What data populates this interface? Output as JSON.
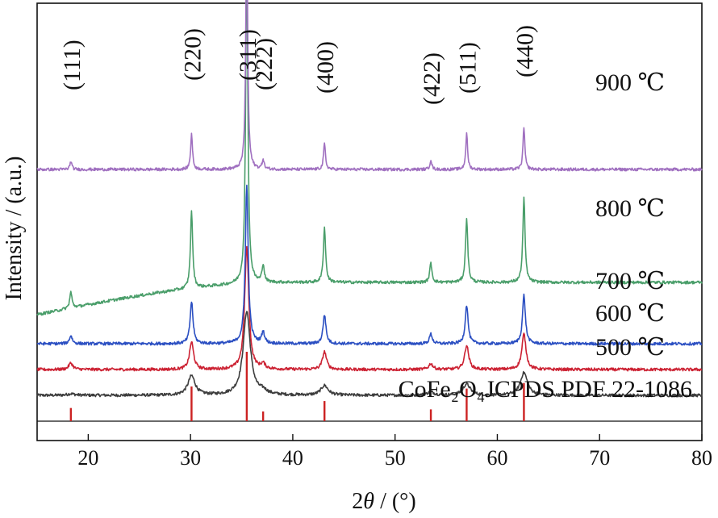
{
  "chart_data": {
    "type": "line",
    "title": "",
    "xlabel": {
      "prefix": "2",
      "symbol": "θ",
      "suffix": " / (°)"
    },
    "ylabel": "Intensity / (a.u.)",
    "xlim": [
      15,
      80
    ],
    "xticks": [
      20,
      30,
      40,
      50,
      60,
      70,
      80
    ],
    "grid": false,
    "legend": "none",
    "plane_labels": [
      {
        "text": "(111)",
        "x": 18.3
      },
      {
        "text": "(220)",
        "x": 30.1
      },
      {
        "text": "(311)",
        "x": 35.5
      },
      {
        "text": "(222)",
        "x": 37.1
      },
      {
        "text": "(400)",
        "x": 43.1
      },
      {
        "text": "(422)",
        "x": 53.5
      },
      {
        "text": "(511)",
        "x": 57.0
      },
      {
        "text": "(440)",
        "x": 62.6
      }
    ],
    "series": [
      {
        "name": "500 ℃",
        "color": "#3d3d3d",
        "baseline": 0.8,
        "tilt": 0,
        "width": 0.42,
        "peaks": [
          [
            18.3,
            0.05
          ],
          [
            30.1,
            0.6
          ],
          [
            35.5,
            2.6
          ],
          [
            37.1,
            0.1
          ],
          [
            43.1,
            0.3
          ],
          [
            53.5,
            0.1
          ],
          [
            57.0,
            0.35
          ],
          [
            62.6,
            0.7
          ]
        ]
      },
      {
        "name": "600 ℃",
        "color": "#cc2233",
        "baseline": 1.6,
        "tilt": 0,
        "width": 0.24,
        "peaks": [
          [
            18.3,
            0.2
          ],
          [
            30.1,
            0.85
          ],
          [
            35.5,
            3.8
          ],
          [
            37.1,
            0.15
          ],
          [
            43.1,
            0.55
          ],
          [
            53.5,
            0.18
          ],
          [
            57.0,
            0.75
          ],
          [
            62.6,
            1.1
          ]
        ]
      },
      {
        "name": "700 ℃",
        "color": "#2b4fc2",
        "baseline": 2.4,
        "tilt": 0,
        "width": 0.17,
        "peaks": [
          [
            18.3,
            0.25
          ],
          [
            30.1,
            1.3
          ],
          [
            35.5,
            4.9
          ],
          [
            37.1,
            0.35
          ],
          [
            43.1,
            0.9
          ],
          [
            53.5,
            0.3
          ],
          [
            57.0,
            1.2
          ],
          [
            62.6,
            1.5
          ]
        ]
      },
      {
        "name": "800 ℃",
        "color": "#4a9e6a",
        "baseline": 3.3,
        "tilt": 1.0,
        "width": 0.13,
        "peaks": [
          [
            18.3,
            0.5
          ],
          [
            30.1,
            2.4
          ],
          [
            35.5,
            10.0
          ],
          [
            37.1,
            0.55
          ],
          [
            43.1,
            1.7
          ],
          [
            53.5,
            0.6
          ],
          [
            57.0,
            2.0
          ],
          [
            62.6,
            2.6
          ]
        ]
      },
      {
        "name": "900 ℃",
        "color": "#a070c0",
        "baseline": 7.8,
        "tilt": 0,
        "width": 0.11,
        "peaks": [
          [
            18.3,
            0.25
          ],
          [
            30.1,
            1.1
          ],
          [
            35.5,
            7.7
          ],
          [
            37.1,
            0.3
          ],
          [
            43.1,
            0.8
          ],
          [
            53.5,
            0.3
          ],
          [
            57.0,
            1.1
          ],
          [
            62.6,
            1.3
          ]
        ]
      }
    ],
    "reference": {
      "label": "CoFe₂O₄JCPDS PDF 22-1086",
      "color": "#cc2222",
      "lines": [
        {
          "x": 18.3,
          "rel": 0.19
        },
        {
          "x": 30.1,
          "rel": 0.5
        },
        {
          "x": 35.5,
          "rel": 1.0
        },
        {
          "x": 37.1,
          "rel": 0.14
        },
        {
          "x": 43.1,
          "rel": 0.29
        },
        {
          "x": 53.5,
          "rel": 0.17
        },
        {
          "x": 57.0,
          "rel": 0.47
        },
        {
          "x": 62.6,
          "rel": 0.55
        }
      ]
    }
  }
}
